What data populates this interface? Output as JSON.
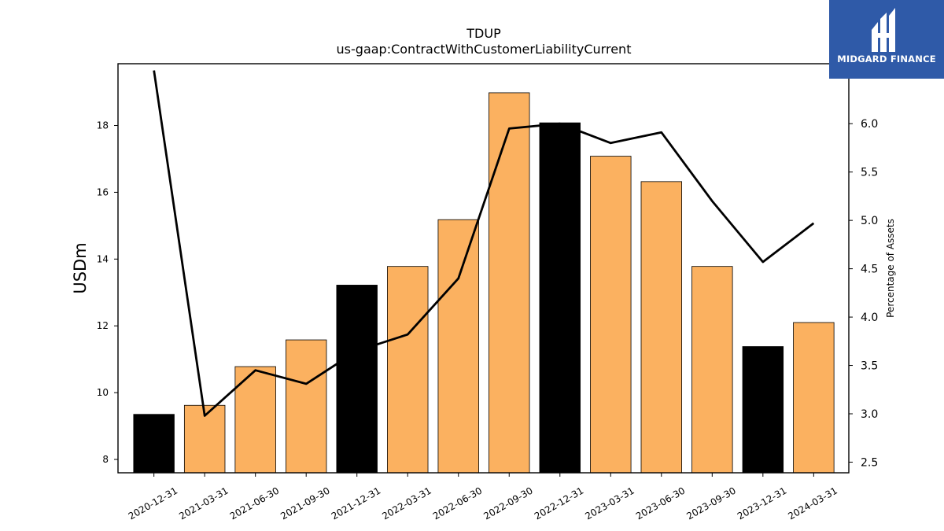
{
  "chart_data": {
    "type": "bar",
    "title": "TDUP",
    "subtitle": "us-gaap:ContractWithCustomerLiabilityCurrent",
    "ylabel": "USDm",
    "y2label": "Percentage of Assets",
    "categories": [
      "2020-12-31",
      "2021-03-31",
      "2021-06-30",
      "2021-09-30",
      "2021-12-31",
      "2022-03-31",
      "2022-06-30",
      "2022-09-30",
      "2022-12-31",
      "2023-03-31",
      "2023-06-30",
      "2023-09-30",
      "2023-12-31",
      "2024-03-31"
    ],
    "series": [
      {
        "type": "bar",
        "values": [
          9.35,
          9.62,
          10.78,
          11.58,
          13.22,
          13.78,
          15.18,
          18.98,
          18.08,
          17.08,
          16.32,
          13.78,
          11.38,
          12.1
        ],
        "colors": [
          "#000000",
          "#fbb160",
          "#fbb160",
          "#fbb160",
          "#000000",
          "#fbb160",
          "#fbb160",
          "#fbb160",
          "#000000",
          "#fbb160",
          "#fbb160",
          "#fbb160",
          "#000000",
          "#fbb160"
        ]
      },
      {
        "type": "line",
        "axis": "right",
        "color": "#000000",
        "values": [
          6.55,
          2.98,
          3.45,
          3.31,
          3.65,
          3.82,
          4.4,
          5.95,
          6.0,
          5.8,
          5.91,
          5.2,
          4.57,
          4.97
        ]
      }
    ],
    "ylim": [
      7.6,
      19.85
    ],
    "yticks": [
      8,
      10,
      12,
      14,
      16,
      18
    ],
    "y2lim": [
      2.39,
      6.62
    ],
    "y2ticks": [
      "2.5",
      "3.0",
      "3.5",
      "4.0",
      "4.5",
      "5.0",
      "5.5",
      "6.0"
    ],
    "grid": false,
    "legend": "none"
  },
  "logo": {
    "text": "MIDGARD FINANCE",
    "color": "#2f5aa8"
  }
}
